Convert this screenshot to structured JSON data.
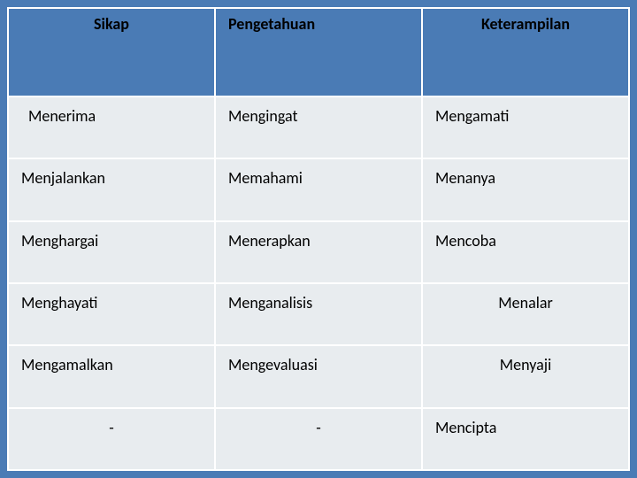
{
  "table": {
    "columns": [
      "Sikap",
      "Pengetahuan",
      "Keterampilan"
    ],
    "rows": [
      [
        "Menerima",
        "Mengingat",
        "Mengamati"
      ],
      [
        "Menjalankan",
        "Memahami",
        "Menanya"
      ],
      [
        "Menghargai",
        "Menerapkan",
        "Mencoba"
      ],
      [
        "Menghayati",
        "Menganalisis",
        "Menalar"
      ],
      [
        "Mengamalkan",
        "Mengevaluasi",
        "Menyaji"
      ],
      [
        "-",
        "-",
        "Mencipta"
      ]
    ],
    "header_bg": "#4a7bb5",
    "body_bg": "#e8ecef",
    "border_color": "#ffffff",
    "text_color": "#000000",
    "fontsize": 18,
    "border_width": 2
  },
  "background_color": "#4a7bb5"
}
